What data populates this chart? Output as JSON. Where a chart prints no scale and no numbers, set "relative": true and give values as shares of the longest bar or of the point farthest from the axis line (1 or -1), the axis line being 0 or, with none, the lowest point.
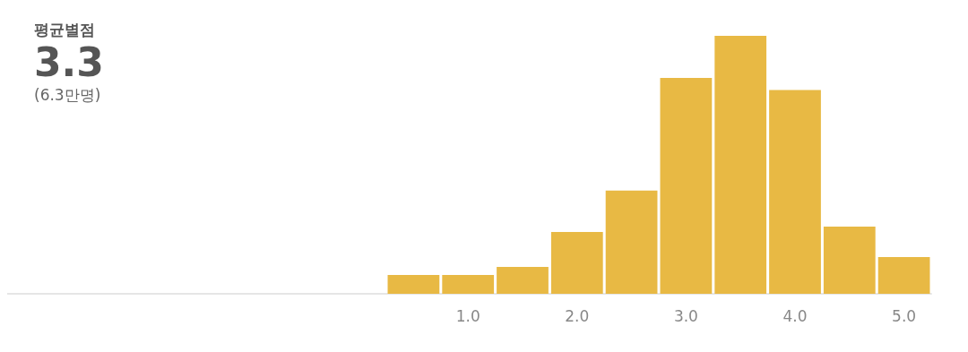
{
  "chart_data": {
    "type": "bar",
    "title": "평균별점",
    "subtitle": "3.3",
    "annotations": [
      "(6.3만명)"
    ],
    "categories": [
      null,
      "1.0",
      null,
      "2.0",
      null,
      "3.0",
      null,
      "4.0",
      null,
      "5.0"
    ],
    "values": [
      0.073,
      0.073,
      0.104,
      0.24,
      0.4,
      0.837,
      1,
      0.79,
      0.26,
      0.142
    ],
    "relative": true,
    "color": "#e8b944",
    "grid": false
  }
}
